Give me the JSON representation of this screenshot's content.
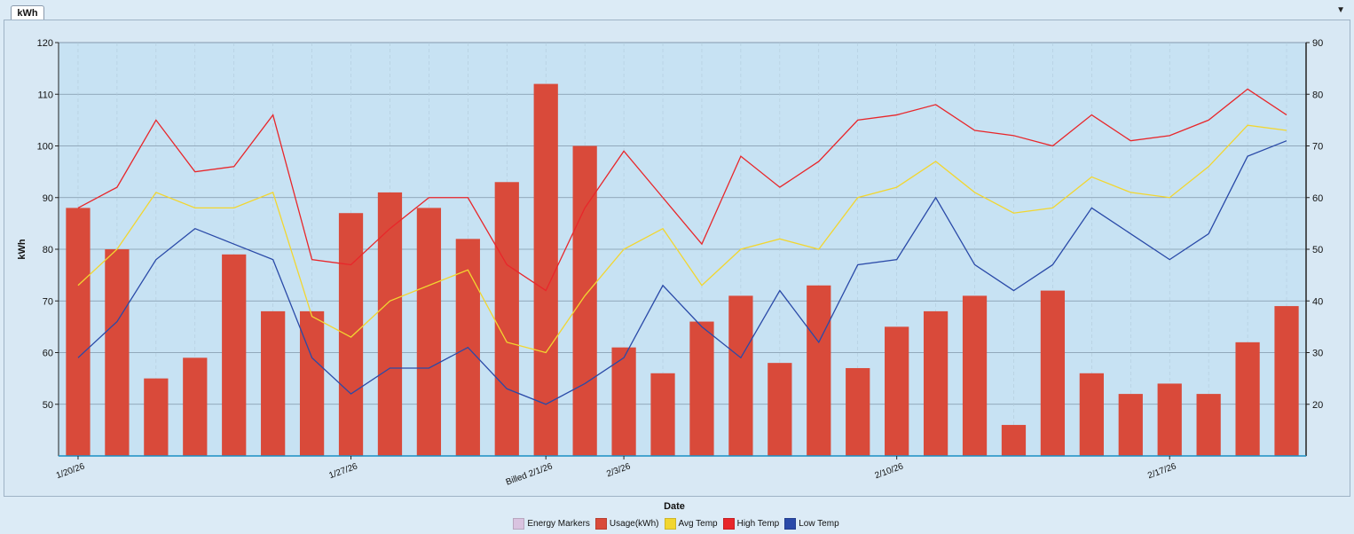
{
  "window": {
    "tab_label": "kWh",
    "menu_icon": "dropdown-arrow-icon"
  },
  "chart_data": {
    "type": "bar",
    "x": [
      "1/20/26",
      "1/21/26",
      "1/22/26",
      "1/23/26",
      "1/24/26",
      "1/25/26",
      "1/26/26",
      "1/27/26",
      "1/28/26",
      "1/29/26",
      "1/30/26",
      "1/31/26",
      "2/1/26",
      "2/2/26",
      "2/3/26",
      "2/4/26",
      "2/5/26",
      "2/6/26",
      "2/7/26",
      "2/8/26",
      "2/9/26",
      "2/10/26",
      "2/11/26",
      "2/12/26",
      "2/13/26",
      "2/14/26",
      "2/15/26",
      "2/16/26",
      "2/17/26",
      "2/18/26",
      "2/19/26",
      "2/20/26"
    ],
    "x_tick_labels": [
      {
        "index": 0,
        "label": "1/20/26"
      },
      {
        "index": 7,
        "label": "1/27/26"
      },
      {
        "index": 12,
        "label": "Billed 2/1/26"
      },
      {
        "index": 14,
        "label": "2/3/26"
      },
      {
        "index": 21,
        "label": "2/10/26"
      },
      {
        "index": 28,
        "label": "2/17/26"
      }
    ],
    "xlabel": "Date",
    "ylabel": "kWh",
    "ylim": [
      40,
      120
    ],
    "y_ticks": [
      50,
      60,
      70,
      80,
      90,
      100,
      110,
      120
    ],
    "y2lim": [
      10,
      90
    ],
    "y2_ticks": [
      20,
      30,
      40,
      50,
      60,
      70,
      80,
      90
    ],
    "grid": true,
    "legend_position": "bottom-center",
    "legend": [
      {
        "name": "Energy Markers",
        "color": "#d9c3e0"
      },
      {
        "name": "Usage(kWh)",
        "color": "#d94a3a"
      },
      {
        "name": "Avg Temp",
        "color": "#f2d630"
      },
      {
        "name": "High Temp",
        "color": "#e8262a"
      },
      {
        "name": "Low Temp",
        "color": "#2a4aa8"
      }
    ],
    "series": [
      {
        "name": "Usage(kWh)",
        "type": "bar",
        "axis": "left",
        "color": "#d94a3a",
        "values": [
          88,
          80,
          55,
          59,
          79,
          68,
          68,
          87,
          91,
          88,
          82,
          93,
          112,
          100,
          61,
          56,
          66,
          71,
          58,
          73,
          57,
          65,
          68,
          71,
          46,
          72,
          56,
          52,
          54,
          52,
          62,
          69
        ]
      },
      {
        "name": "High Temp",
        "type": "line",
        "axis": "right",
        "color": "#e8262a",
        "values": [
          58,
          62,
          75,
          65,
          66,
          76,
          48,
          47,
          54,
          60,
          60,
          47,
          42,
          58,
          69,
          60,
          51,
          68,
          62,
          67,
          75,
          76,
          78,
          73,
          72,
          70,
          76,
          71,
          72,
          75,
          81,
          76
        ]
      },
      {
        "name": "Avg Temp",
        "type": "line",
        "axis": "right",
        "color": "#f2d630",
        "values": [
          43,
          50,
          61,
          58,
          58,
          61,
          37,
          33,
          40,
          43,
          46,
          32,
          30,
          41,
          50,
          54,
          43,
          50,
          52,
          50,
          60,
          62,
          67,
          61,
          57,
          58,
          64,
          61,
          60,
          66,
          74,
          73
        ]
      },
      {
        "name": "Low Temp",
        "type": "line",
        "axis": "right",
        "color": "#2a4aa8",
        "values": [
          29,
          36,
          48,
          54,
          51,
          48,
          29,
          22,
          27,
          27,
          31,
          23,
          20,
          24,
          29,
          43,
          35,
          29,
          42,
          32,
          47,
          48,
          60,
          47,
          42,
          47,
          58,
          53,
          48,
          53,
          68,
          71
        ]
      }
    ]
  }
}
